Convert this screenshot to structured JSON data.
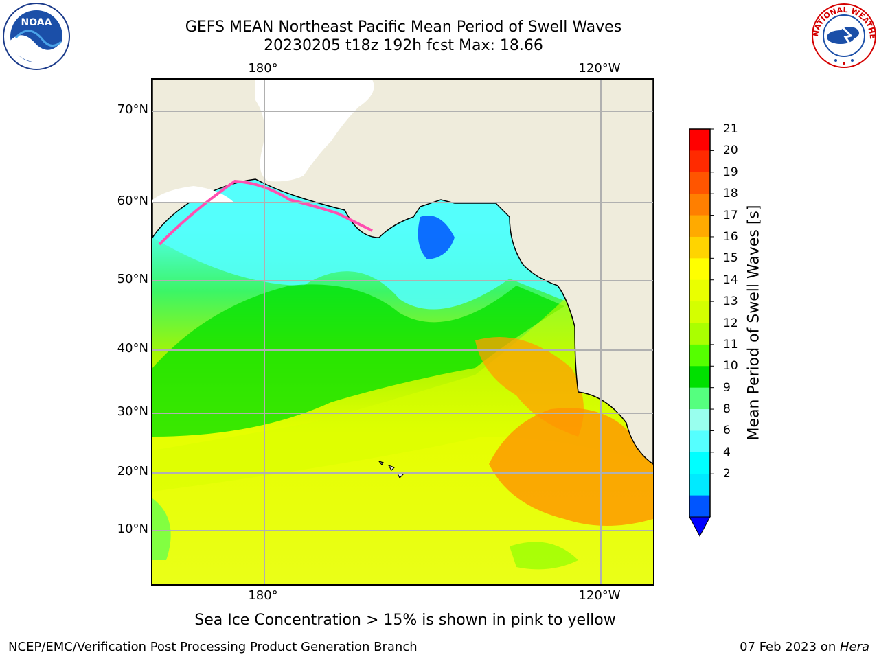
{
  "header": {
    "title_line1": "GEFS MEAN Northeast Pacific Mean Period of Swell Waves",
    "title_line2": "20230205 t18z 192h fcst   Max: 18.66"
  },
  "logos": {
    "left": "noaa-logo",
    "left_text": "NOAA",
    "right": "national-weather-service-logo",
    "right_text": "NATIONAL WEATHER SERVICE"
  },
  "map": {
    "lat_labels": [
      "70°N",
      "60°N",
      "50°N",
      "40°N",
      "30°N",
      "20°N",
      "10°N"
    ],
    "lon_labels_top": [
      "180°",
      "120°W"
    ],
    "lon_labels_bottom": [
      "180°",
      "120°W"
    ],
    "land_color": "#efecdc",
    "grid_color": "#b0b0b0"
  },
  "colorbar": {
    "label": "Mean Period of Swell Waves [s]",
    "ticks": [
      "21",
      "20",
      "19",
      "18",
      "17",
      "16",
      "15",
      "14",
      "13",
      "12",
      "11",
      "10",
      "9",
      "8",
      "6",
      "4",
      "2"
    ],
    "colors": [
      "#ff0000",
      "#ff2a00",
      "#ff5500",
      "#ff7f00",
      "#ffaa00",
      "#ffd400",
      "#ffff00",
      "#eaff00",
      "#d4ff00",
      "#aaff00",
      "#55ff00",
      "#00e000",
      "#55ff7f",
      "#99ffee",
      "#55ffff",
      "#00ffff",
      "#00eaff",
      "#0055ff"
    ],
    "extend_color": "#0000ff"
  },
  "notes": {
    "ice": "Sea Ice Concentration > 15% is shown in pink to yellow"
  },
  "footer": {
    "left": "NCEP/EMC/Verification Post Processing Product Generation Branch",
    "date": "07 Feb 2023 on ",
    "host": "Hera"
  }
}
